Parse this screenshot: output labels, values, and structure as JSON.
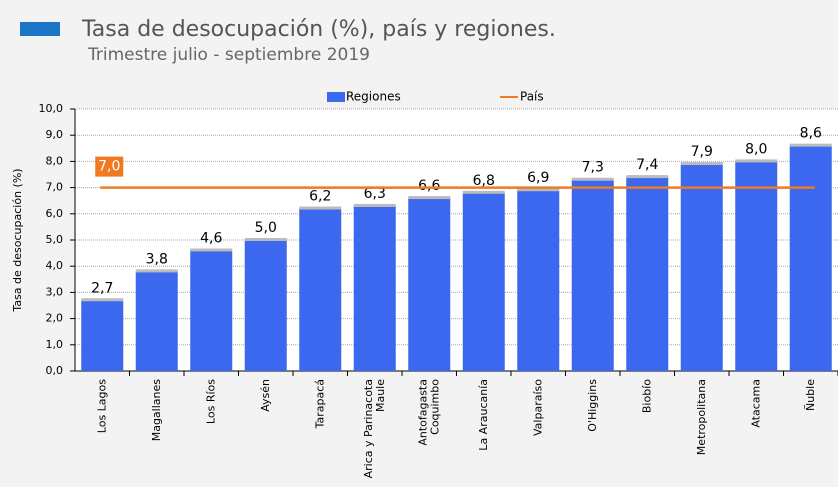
{
  "chart_data": {
    "type": "bar",
    "title": "Tasa de desocupación (%), país y regiones.",
    "subtitle": "Trimestre julio - septiembre 2019",
    "y_label": "Tasa de desocupación (%)",
    "categories": [
      "Los Lagos",
      "Magallanes",
      "Los Ríos",
      "Aysén",
      "Tarapacá",
      [
        "Arica y Parinacota",
        "Maule"
      ],
      [
        "Antofagasta",
        "Coquimbo"
      ],
      "La Araucanía",
      "Valparaíso",
      "O'Higgins",
      "Biobío",
      "Metropolitana",
      "Atacama",
      "Ñuble"
    ],
    "series": [
      {
        "name": "Regiones",
        "color": "#3b68ee",
        "values": [
          2.7,
          3.8,
          4.6,
          5.0,
          6.2,
          6.3,
          6.6,
          6.8,
          6.9,
          7.3,
          7.4,
          7.9,
          8.0,
          8.6
        ],
        "value_labels": [
          "2,7",
          "3,8",
          "4,6",
          "5,0",
          "6,2",
          "6,3",
          "6,6",
          "6,8",
          "6,9",
          "7,3",
          "7,4",
          "7,9",
          "8,0",
          "8,6"
        ]
      }
    ],
    "reference_line": {
      "name": "País",
      "color": "#f07a22",
      "value": 7.0,
      "value_label": "7,0"
    },
    "ylim": [
      0,
      10
    ],
    "yticks": [
      {
        "value": 0,
        "label": "0,0"
      },
      {
        "value": 1,
        "label": "1,0"
      },
      {
        "value": 2,
        "label": "2,0"
      },
      {
        "value": 3,
        "label": "3,0"
      },
      {
        "value": 4,
        "label": "4,0"
      },
      {
        "value": 5,
        "label": "5,0"
      },
      {
        "value": 6,
        "label": "6,0"
      },
      {
        "value": 7,
        "label": "7,0"
      },
      {
        "value": 8,
        "label": "8,0"
      },
      {
        "value": 9,
        "label": "9,0"
      },
      {
        "value": 10,
        "label": "10,0"
      }
    ],
    "grid": true
  }
}
